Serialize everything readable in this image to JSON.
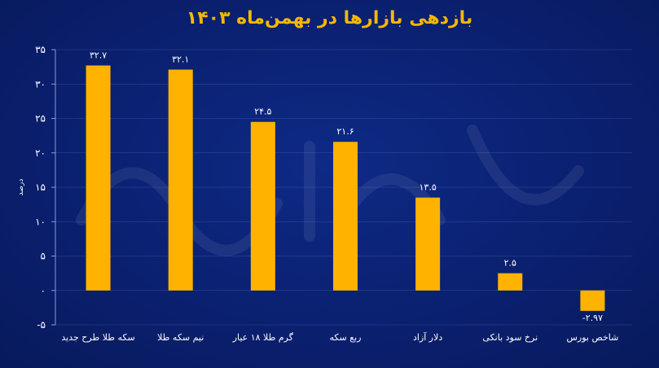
{
  "chart_data": {
    "type": "bar",
    "title": "بازدهی بازارها در بهمن‌ماه ۱۴۰۳",
    "ylabel": "درصد",
    "categories": [
      "سکه طلا طرح  جدید",
      "نیم سکه طلا",
      "گرم طلا ۱۸ عیار",
      "ربع سکه",
      "دلار آزاد",
      "نرخ سود بانکی",
      "شاخص بورس"
    ],
    "values": [
      32.7,
      32.1,
      24.5,
      21.6,
      13.5,
      2.5,
      -2.97
    ],
    "value_labels": [
      "۳۲.۷",
      "۳۲.۱",
      "۲۴.۵",
      "۲۱.۶",
      "۱۳.۵",
      "۲.۵",
      "-۲.۹۷"
    ],
    "ylim": [
      -5,
      35
    ],
    "yticks": [
      35,
      30,
      25,
      20,
      15,
      10,
      5,
      0,
      -5
    ],
    "ytick_labels": [
      "۳۵",
      "۳۰",
      "۲۵",
      "۲۰",
      "۱۵",
      "۱۰",
      "۵",
      "۰",
      "-۵"
    ],
    "grid": true,
    "colors": {
      "bar": "#ffb300",
      "axis": "#8b9bd0",
      "text": "#ffffff",
      "title": "#f5b800"
    }
  }
}
